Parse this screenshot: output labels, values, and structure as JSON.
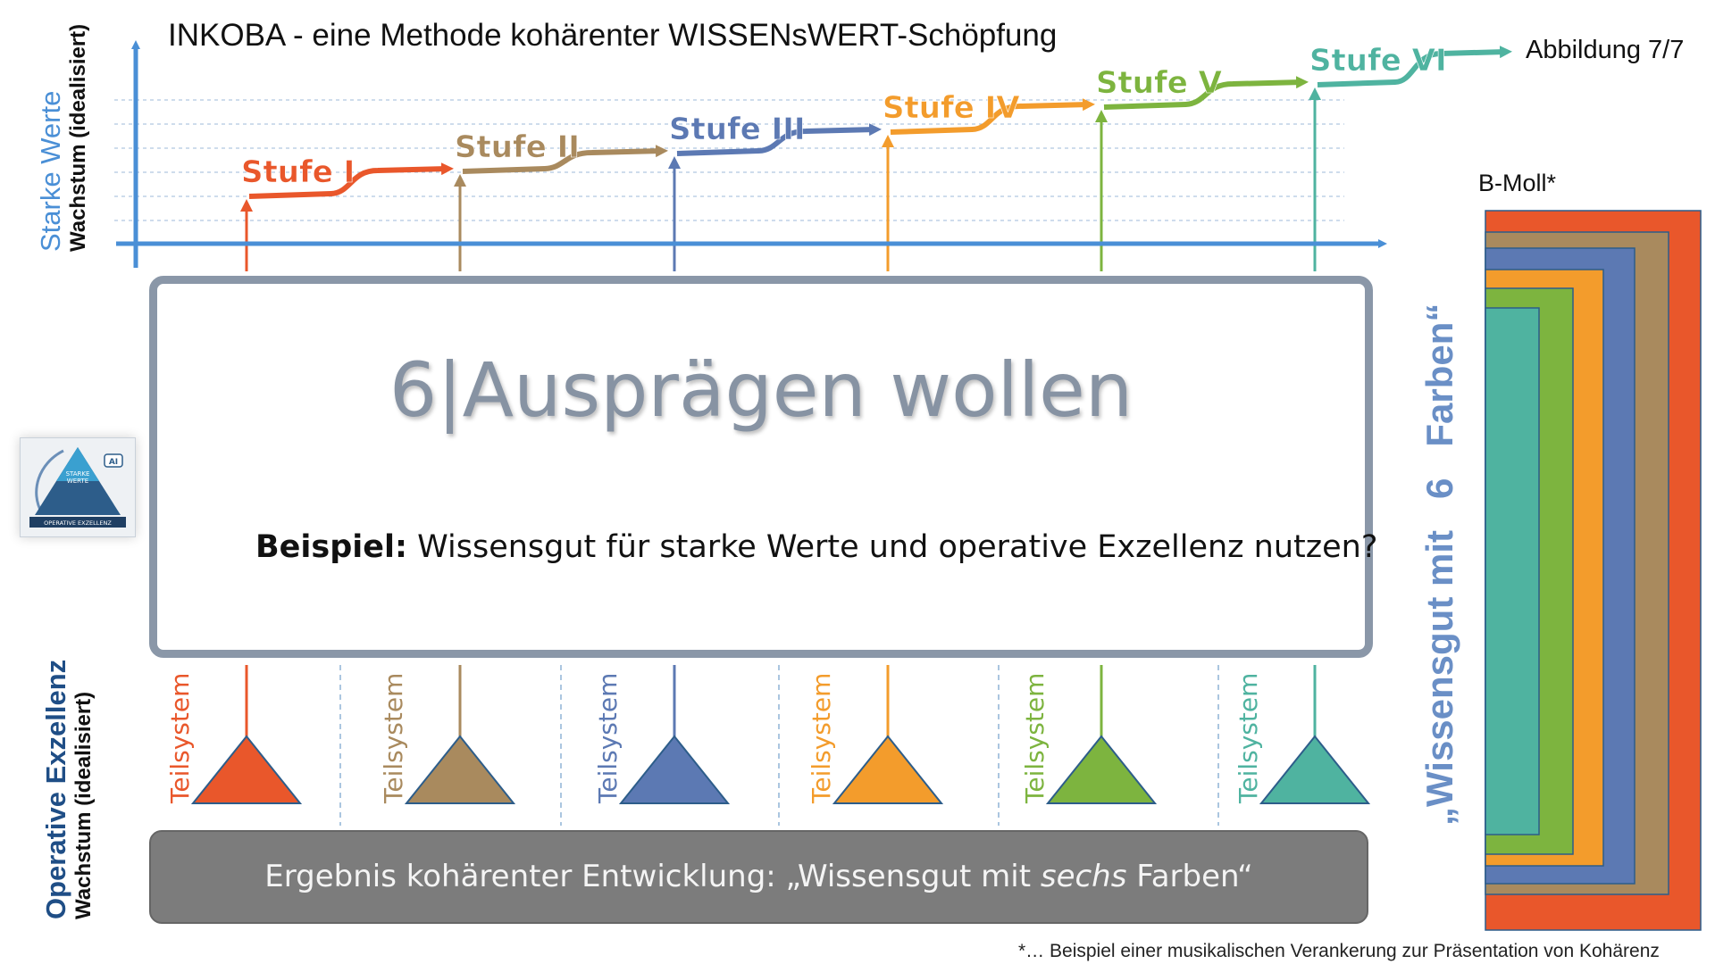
{
  "header": {
    "title": "INKOBA - eine Methode kohärenter WISSENsWERT-Schöpfung",
    "figure_label": "Abbildung 7/7"
  },
  "axes": {
    "top_main": "Starke Werte",
    "top_sub": "Wachstum (idealisiert)",
    "bottom_main": "Operative Exzellenz",
    "bottom_sub": "Wachstum (idealisiert)"
  },
  "stages": [
    {
      "label": "Stufe I",
      "color": "#e9572b"
    },
    {
      "label": "Stufe II",
      "color": "#a98a5e"
    },
    {
      "label": "Stufe III",
      "color": "#5c79b3"
    },
    {
      "label": "Stufe IV",
      "color": "#f39c2c"
    },
    {
      "label": "Stufe V",
      "color": "#7db43f"
    },
    {
      "label": "Stufe VI",
      "color": "#4fb3a0"
    }
  ],
  "subsystems": [
    {
      "label": "Teilsystem",
      "color": "#e9572b"
    },
    {
      "label": "Teilsystem",
      "color": "#a98a5e"
    },
    {
      "label": "Teilsystem",
      "color": "#5c79b3"
    },
    {
      "label": "Teilsystem",
      "color": "#f39c2c"
    },
    {
      "label": "Teilsystem",
      "color": "#7db43f"
    },
    {
      "label": "Teilsystem",
      "color": "#4fb3a0"
    }
  ],
  "main_box": {
    "heading": "6|Ausprägen wollen",
    "example_label": "Beispiel:",
    "example_text": "Wissensgut für starke Werte und operative Exzellenz nutzen?"
  },
  "result": {
    "prefix": "Ergebnis kohärenter Entwicklung: „Wissensgut mit ",
    "emphasis": "sechs",
    "suffix": " Farben“"
  },
  "side_label": "„Wissensgut mit   6   Farben“",
  "logo": {
    "line1": "STARKE",
    "line2": "WERTE",
    "bottom": "OPERATIVE EXZELLENZ",
    "badge": "AI"
  },
  "legend": {
    "title": "B-Moll*",
    "colors": [
      "#e9572b",
      "#a98a5e",
      "#5c79b3",
      "#f39c2c",
      "#7db43f",
      "#4fb3a0"
    ]
  },
  "footnote": "*… Beispiel einer musikalischen Verankerung zur Präsentation von Kohärenz"
}
